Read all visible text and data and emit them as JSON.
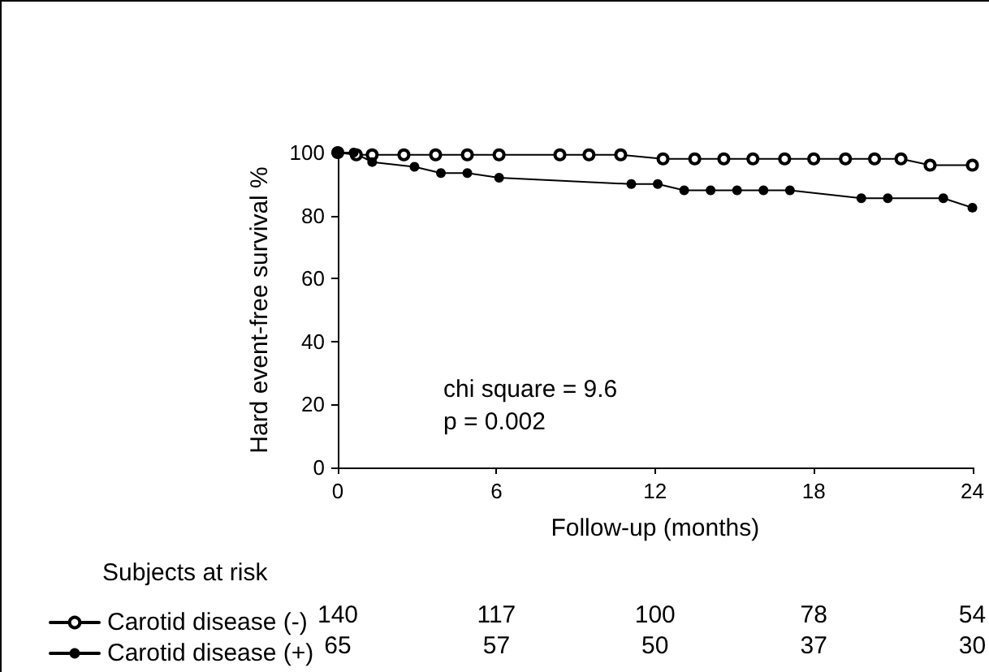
{
  "chart_data": {
    "type": "line",
    "xlabel": "Follow-up (months)",
    "ylabel": "Hard event-free survival %",
    "xlim": [
      0,
      24
    ],
    "xticks": [
      0,
      6,
      12,
      18,
      24
    ],
    "ylim": [
      0,
      100
    ],
    "yticks": [
      0,
      20,
      40,
      60,
      80,
      100
    ],
    "grid": false,
    "legend": "bottom left",
    "marker": "circle",
    "line_style": "solid",
    "series": [
      {
        "name": "Carotid disease (-)",
        "color": "#000000",
        "x": [
          0,
          0.7,
          1.3,
          2.5,
          3.7,
          4.9,
          6.1,
          8.4,
          9.5,
          10.7,
          12.3,
          13.5,
          14.6,
          15.7,
          16.9,
          18,
          19.2,
          20.3,
          21.3,
          22.4,
          24
        ],
        "values": [
          100,
          99.3,
          99.3,
          99.3,
          99.3,
          99.3,
          99.3,
          99.3,
          99.3,
          99.3,
          98,
          98,
          98,
          98,
          98,
          98,
          98,
          98,
          98,
          96,
          96
        ]
      },
      {
        "name": "Carotid disease (+)",
        "color": "#000000",
        "x": [
          0,
          0.6,
          1.3,
          2.9,
          3.9,
          4.9,
          6.1,
          11.1,
          12.1,
          13.1,
          14.1,
          15.1,
          16.1,
          17.1,
          19.8,
          20.8,
          22.9,
          24
        ],
        "values": [
          100,
          100,
          97,
          95.5,
          93.5,
          93.5,
          92,
          90,
          90,
          88,
          88,
          88,
          88,
          88,
          85.5,
          85.5,
          85.5,
          82.5
        ]
      }
    ],
    "annotations": [
      "chi square = 9.6\np = 0.002",
      "Subjects at risk",
      "140",
      "117",
      "100",
      "78",
      "54",
      "65",
      "57",
      "50",
      "37",
      "30"
    ]
  }
}
